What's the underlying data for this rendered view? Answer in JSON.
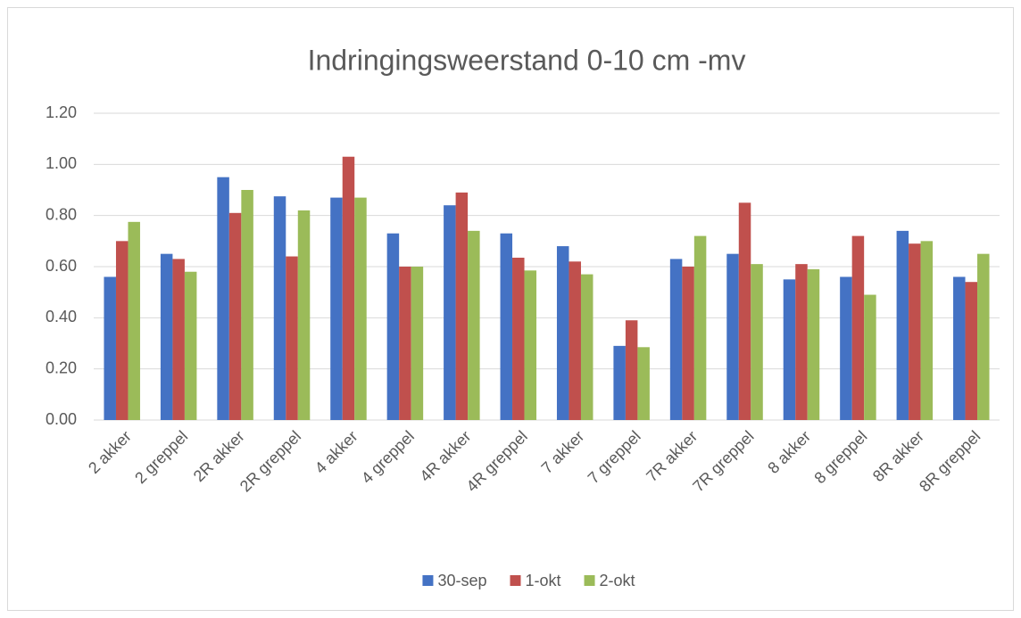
{
  "chart_data": {
    "type": "bar",
    "title": "Indringingsweerstand 0-10 cm -mv",
    "categories": [
      "2 akker",
      "2 greppel",
      "2R akker",
      "2R greppel",
      "4 akker",
      "4 greppel",
      "4R akker",
      "4R greppel",
      "7 akker",
      "7 greppel",
      "7R akker",
      "7R greppel",
      "8 akker",
      "8 greppel",
      "8R akker",
      "8R greppel"
    ],
    "series": [
      {
        "name": "30-sep",
        "color": "#4472c4",
        "values": [
          0.56,
          0.65,
          0.95,
          0.875,
          0.87,
          0.73,
          0.84,
          0.73,
          0.68,
          0.29,
          0.63,
          0.65,
          0.55,
          0.56,
          0.74,
          0.56
        ]
      },
      {
        "name": "1-okt",
        "color": "#c0504d",
        "values": [
          0.7,
          0.63,
          0.81,
          0.64,
          1.03,
          0.6,
          0.89,
          0.635,
          0.62,
          0.39,
          0.6,
          0.85,
          0.61,
          0.72,
          0.69,
          0.54
        ]
      },
      {
        "name": "2-okt",
        "color": "#9bbb59",
        "values": [
          0.775,
          0.58,
          0.9,
          0.82,
          0.87,
          0.6,
          0.74,
          0.585,
          0.57,
          0.285,
          0.72,
          0.61,
          0.59,
          0.49,
          0.7,
          0.65
        ]
      }
    ],
    "ylim": [
      0,
      1.2
    ],
    "yticks": [
      {
        "value": 0,
        "label": "0.00"
      },
      {
        "value": 0.2,
        "label": "0.20"
      },
      {
        "value": 0.4,
        "label": "0.40"
      },
      {
        "value": 0.6,
        "label": "0.60"
      },
      {
        "value": 0.8,
        "label": "0.80"
      },
      {
        "value": 1.0,
        "label": "1.00"
      },
      {
        "value": 1.2,
        "label": "1.20"
      }
    ],
    "grid": true,
    "legend": "bottom"
  }
}
